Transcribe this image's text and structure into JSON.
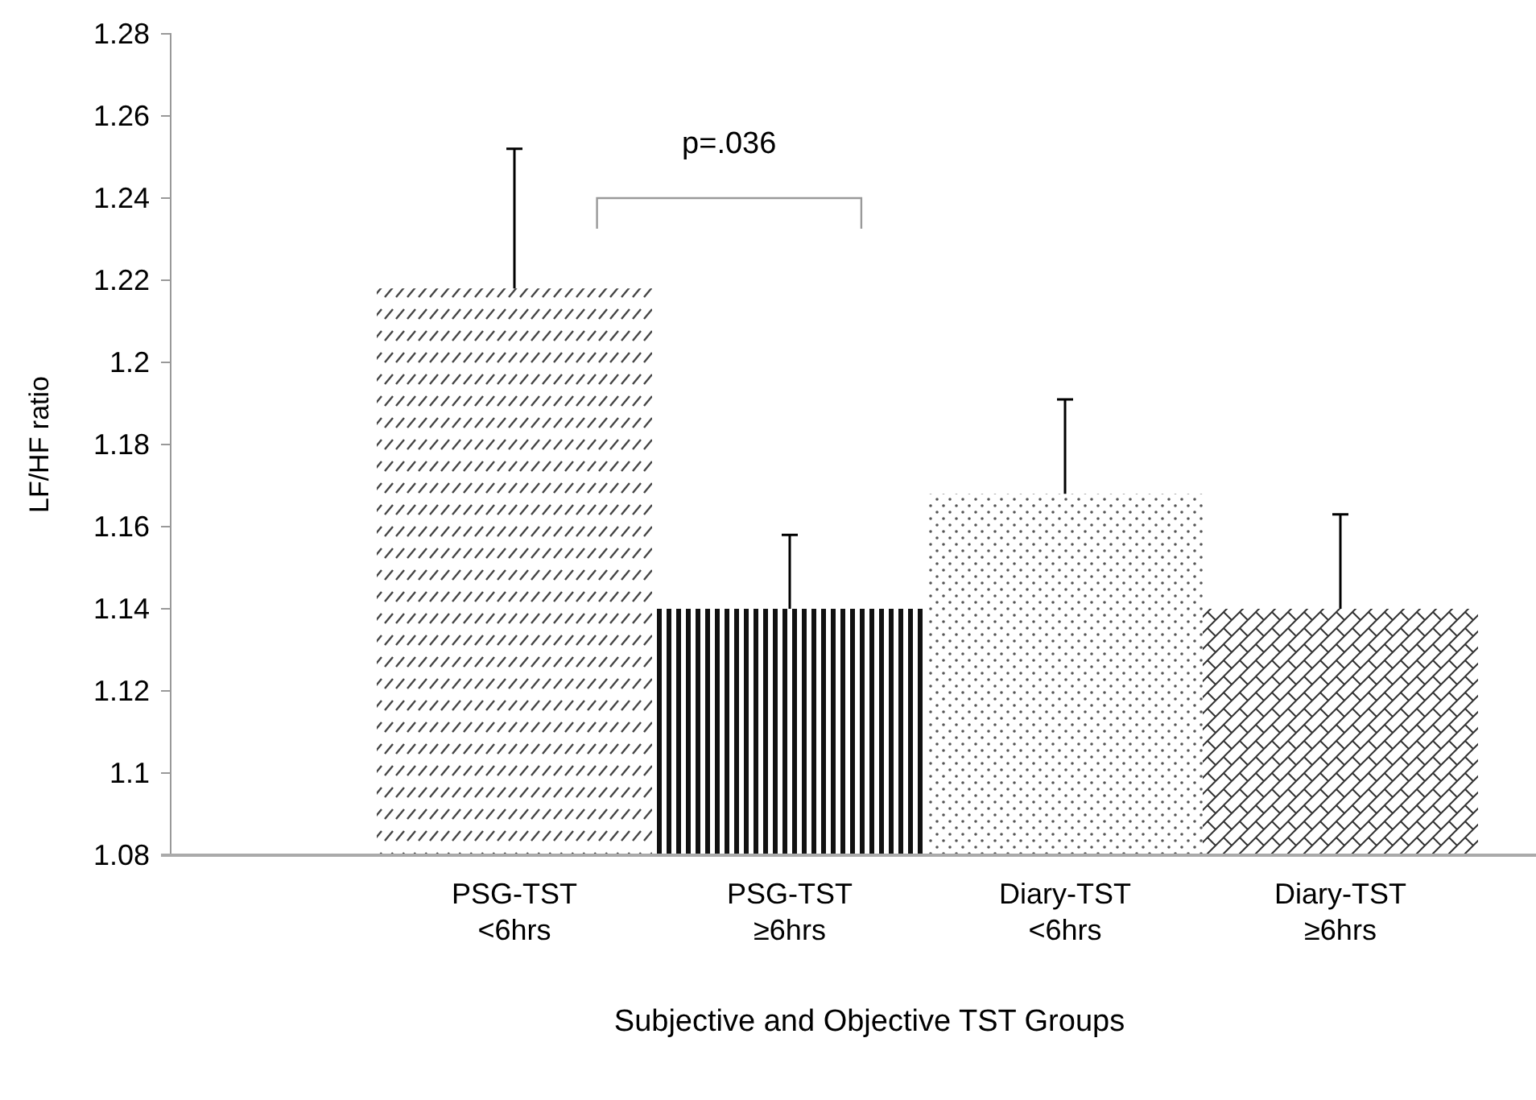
{
  "chart_data": {
    "type": "bar",
    "xlabel": "Subjective and Objective TST Groups",
    "ylabel": "LF/HF ratio",
    "categories": [
      "PSG-TST <6hrs",
      "PSG-TST ≥6hrs",
      "Diary-TST <6hrs",
      "Diary-TST ≥6hrs"
    ],
    "values": [
      1.218,
      1.14,
      1.168,
      1.14
    ],
    "errors": [
      [
        1.218,
        1.252
      ],
      [
        1.14,
        1.158
      ],
      [
        1.168,
        1.191
      ],
      [
        1.14,
        1.163
      ]
    ],
    "colors": [
      "#444444",
      "#111111",
      "#555555",
      "#333333"
    ],
    "ylim": [
      1.08,
      1.28
    ],
    "yticks": [
      1.08,
      1.1,
      1.12,
      1.14,
      1.16,
      1.18,
      1.2,
      1.22,
      1.24,
      1.26,
      1.28
    ],
    "annotations": [
      "p=.036"
    ]
  }
}
